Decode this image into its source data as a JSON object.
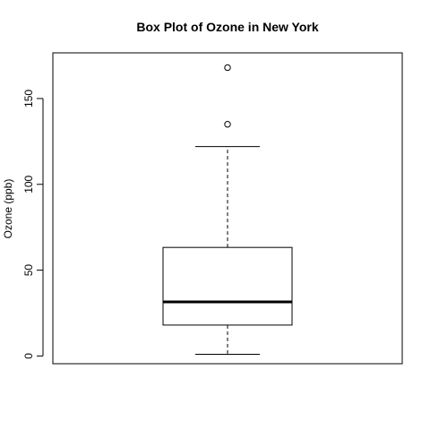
{
  "chart_data": {
    "type": "box",
    "title": "Box Plot of Ozone in New York",
    "xlabel": "",
    "ylabel": "Ozone (ppb)",
    "ylim": [
      -4.5,
      176.6
    ],
    "yticks": [
      0,
      50,
      100,
      150
    ],
    "grid": false,
    "box": {
      "whisker_low": 1,
      "q1": 18,
      "median": 31.5,
      "q3": 63.25,
      "whisker_high": 122,
      "outliers": [
        135,
        168
      ]
    }
  }
}
